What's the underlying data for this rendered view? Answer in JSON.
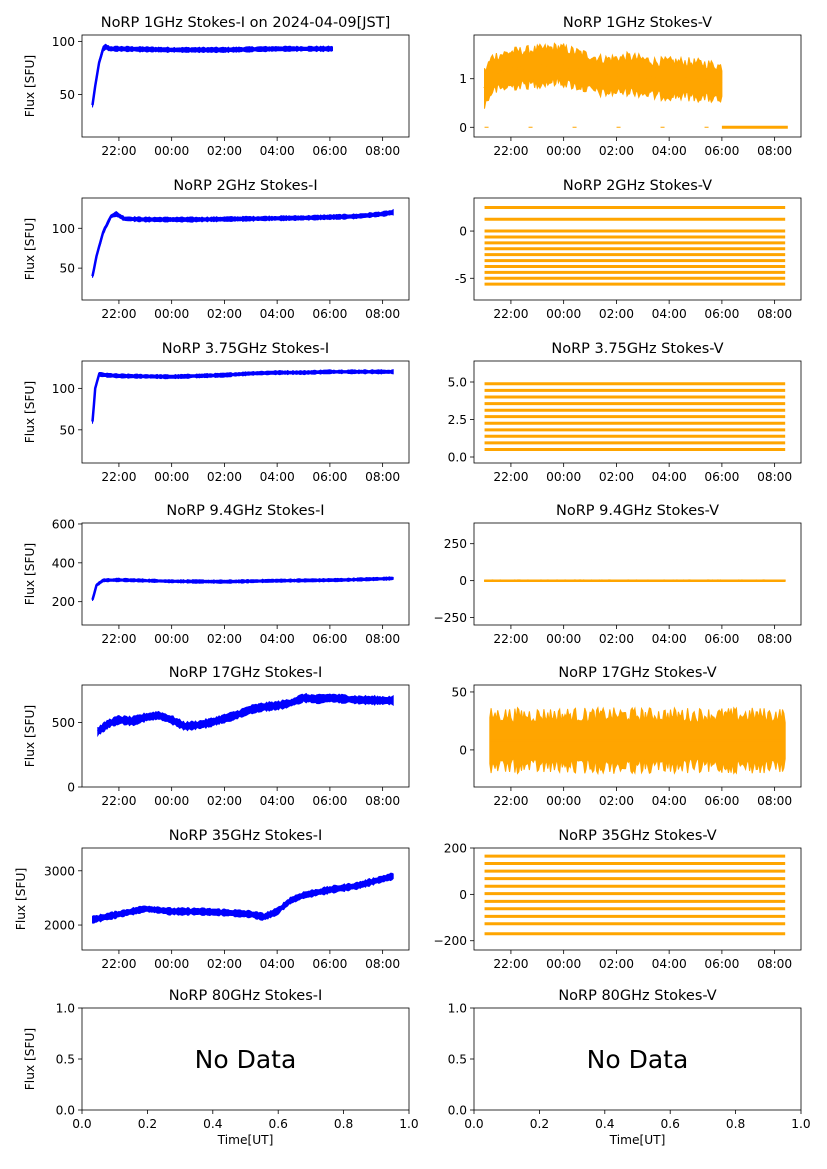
{
  "figure": {
    "date_label": "2024-04-09[JST]",
    "xlabel": "Time[UT]",
    "ylabel": "Flux [SFU]",
    "time_ticks": [
      "22:00",
      "00:00",
      "02:00",
      "04:00",
      "06:00",
      "08:00"
    ],
    "stokes_i_color": "#0000ff",
    "stokes_v_color": "#ffa500",
    "no_data_label": "No Data"
  },
  "chart_data": [
    {
      "type": "scatter",
      "title": "NoRP 1GHz Stokes-I on 2024-04-09[JST]",
      "ylabel": "Flux [SFU]",
      "xlabel": "",
      "x_unit": "hours since 21:00 UT",
      "xlim": [
        -0.4,
        12.0
      ],
      "ylim": [
        10,
        106
      ],
      "yticks": [
        50,
        100
      ],
      "color": "#0000ff",
      "series": [
        {
          "name": "Stokes-I",
          "x": [
            0,
            0.08,
            0.25,
            0.4,
            0.5,
            0.65,
            1,
            3,
            5,
            7,
            9
          ],
          "y": [
            40,
            55,
            80,
            93,
            95,
            93,
            93,
            92,
            92,
            93,
            93
          ],
          "spread": 2
        }
      ],
      "data_end": 9.1
    },
    {
      "type": "scatter",
      "title": "NoRP 1GHz Stokes-V",
      "ylabel": "",
      "xlabel": "",
      "x_unit": "hours since 21:00 UT",
      "xlim": [
        -0.4,
        12.0
      ],
      "ylim": [
        -0.2,
        1.9
      ],
      "yticks": [
        0,
        1
      ],
      "color": "#ffa500",
      "series": [
        {
          "name": "Stokes-V",
          "x": [
            0,
            0.3,
            1,
            2,
            2.8,
            3.8,
            4.5,
            5.5,
            6.5,
            7.5,
            8.5,
            9.0
          ],
          "y": [
            0.8,
            1.1,
            1.2,
            1.25,
            1.3,
            1.15,
            1.05,
            1.1,
            1.0,
            1.0,
            0.95,
            0.9
          ],
          "spread": 0.35
        }
      ],
      "extra_lines": [
        [
          0,
          9.0
        ],
        [
          11.5,
          0
        ]
      ]
    },
    {
      "type": "scatter",
      "title": "NoRP 2GHz Stokes-I",
      "ylabel": "Flux [SFU]",
      "xlabel": "",
      "x_unit": "hours since 21:00 UT",
      "xlim": [
        -0.4,
        12.0
      ],
      "ylim": [
        10,
        138
      ],
      "yticks": [
        50,
        100
      ],
      "color": "#0000ff",
      "series": [
        {
          "name": "Stokes-I",
          "x": [
            0,
            0.15,
            0.4,
            0.7,
            0.9,
            1.2,
            2,
            4,
            6,
            8,
            10,
            11,
            11.4
          ],
          "y": [
            40,
            65,
            95,
            115,
            118,
            112,
            111,
            111,
            112,
            113,
            115,
            118,
            120
          ],
          "spread": 2.5
        }
      ],
      "data_end": 11.4
    },
    {
      "type": "scatter",
      "title": "NoRP 2GHz Stokes-V",
      "ylabel": "",
      "xlabel": "",
      "x_unit": "hours since 21:00 UT",
      "xlim": [
        -0.4,
        12.0
      ],
      "ylim": [
        -7.3,
        3.5
      ],
      "yticks": [
        -5,
        0
      ],
      "color": "#ffa500",
      "levels": [
        2.5,
        1.25,
        0,
        -0.625,
        -1.25,
        -1.875,
        -2.5,
        -3.125,
        -3.75,
        -4.375,
        -5.0,
        -5.625
      ],
      "data_start": 0.0,
      "data_end": 11.4
    },
    {
      "type": "scatter",
      "title": "NoRP 3.75GHz Stokes-I",
      "ylabel": "Flux [SFU]",
      "xlabel": "",
      "x_unit": "hours since 21:00 UT",
      "xlim": [
        -0.4,
        12.0
      ],
      "ylim": [
        10,
        133
      ],
      "yticks": [
        50,
        100
      ],
      "color": "#0000ff",
      "series": [
        {
          "name": "Stokes-I",
          "x": [
            0,
            0.1,
            0.25,
            0.5,
            1,
            3,
            4,
            5,
            6,
            7,
            8,
            9,
            11,
            11.4
          ],
          "y": [
            60,
            100,
            117,
            116,
            115,
            114,
            115,
            116,
            118,
            119,
            119,
            120,
            120,
            120
          ],
          "spread": 2
        }
      ],
      "data_end": 11.4
    },
    {
      "type": "scatter",
      "title": "NoRP 3.75GHz Stokes-V",
      "ylabel": "",
      "xlabel": "",
      "x_unit": "hours since 21:00 UT",
      "xlim": [
        -0.4,
        12.0
      ],
      "ylim": [
        -0.4,
        6.4
      ],
      "yticks": [
        0.0,
        2.5,
        5.0
      ],
      "tick_labels": [
        "0.0",
        "2.5",
        "5.0"
      ],
      "color": "#ffa500",
      "levels": [
        0.5,
        0.94,
        1.38,
        1.81,
        2.25,
        2.69,
        3.12,
        3.56,
        4.0,
        4.44,
        4.88
      ],
      "data_start": 0.0,
      "data_end": 11.4
    },
    {
      "type": "scatter",
      "title": "NoRP 9.4GHz Stokes-I",
      "ylabel": "Flux [SFU]",
      "xlabel": "",
      "x_unit": "hours since 21:00 UT",
      "xlim": [
        -0.4,
        12.0
      ],
      "ylim": [
        80,
        605
      ],
      "yticks": [
        200,
        400,
        600
      ],
      "color": "#0000ff",
      "series": [
        {
          "name": "Stokes-I",
          "x": [
            0,
            0.15,
            0.4,
            1,
            3,
            5,
            7,
            8.5,
            9.5,
            11,
            11.4
          ],
          "y": [
            210,
            285,
            310,
            312,
            305,
            303,
            308,
            310,
            312,
            318,
            320
          ],
          "spread": 7
        }
      ],
      "data_end": 11.4
    },
    {
      "type": "scatter",
      "title": "NoRP 9.4GHz Stokes-V",
      "ylabel": "",
      "xlabel": "",
      "x_unit": "hours since 21:00 UT",
      "xlim": [
        -0.4,
        12.0
      ],
      "ylim": [
        -300,
        390
      ],
      "yticks": [
        -250,
        0,
        250
      ],
      "tick_labels": [
        "−250",
        "0",
        "250"
      ],
      "color": "#ffa500",
      "series": [
        {
          "name": "Stokes-V",
          "x": [
            0,
            11.4
          ],
          "y": [
            0,
            0
          ],
          "spread": 4
        }
      ],
      "data_start": 0.0,
      "data_end": 11.4
    },
    {
      "type": "scatter",
      "title": "NoRP 17GHz Stokes-I",
      "ylabel": "Flux [SFU]",
      "xlabel": "",
      "x_unit": "hours since 21:00 UT",
      "xlim": [
        -0.4,
        12.0
      ],
      "ylim": [
        0,
        790
      ],
      "yticks": [
        0,
        500
      ],
      "color": "#0000ff",
      "series": [
        {
          "name": "Stokes-I",
          "x": [
            0.2,
            0.6,
            1,
            1.5,
            2,
            2.5,
            3,
            3.5,
            4,
            4.5,
            5,
            5.5,
            6,
            6.5,
            7,
            7.5,
            8,
            8.5,
            9,
            10,
            11,
            11.4
          ],
          "y": [
            430,
            490,
            520,
            510,
            540,
            555,
            520,
            470,
            480,
            500,
            530,
            560,
            600,
            620,
            630,
            650,
            690,
            680,
            690,
            675,
            670,
            670
          ],
          "spread": 28
        }
      ],
      "data_start": 0.2,
      "data_end": 11.4
    },
    {
      "type": "scatter",
      "title": "NoRP 17GHz Stokes-V",
      "ylabel": "",
      "xlabel": "",
      "x_unit": "hours since 21:00 UT",
      "xlim": [
        -0.4,
        12.0
      ],
      "ylim": [
        -32,
        56
      ],
      "yticks": [
        0,
        50
      ],
      "color": "#ffa500",
      "series": [
        {
          "name": "Stokes-V",
          "x": [
            0.2,
            11.4
          ],
          "y": [
            8,
            8
          ],
          "spread": 22
        }
      ],
      "data_start": 0.2,
      "data_end": 11.4
    },
    {
      "type": "scatter",
      "title": "NoRP 35GHz Stokes-I",
      "ylabel": "Flux [SFU]",
      "xlabel": "",
      "x_unit": "hours since 21:00 UT",
      "xlim": [
        -0.4,
        12.0
      ],
      "ylim": [
        1540,
        3420
      ],
      "yticks": [
        2000,
        3000
      ],
      "color": "#0000ff",
      "series": [
        {
          "name": "Stokes-I",
          "x": [
            0,
            1,
            2,
            3,
            4,
            5,
            6,
            6.5,
            7,
            7.5,
            8,
            9,
            10,
            11,
            11.4
          ],
          "y": [
            2100,
            2200,
            2300,
            2250,
            2250,
            2230,
            2200,
            2150,
            2250,
            2450,
            2550,
            2650,
            2720,
            2850,
            2900
          ],
          "spread": 55
        }
      ],
      "data_end": 11.4
    },
    {
      "type": "scatter",
      "title": "NoRP 35GHz Stokes-V",
      "ylabel": "",
      "xlabel": "",
      "x_unit": "hours since 21:00 UT",
      "xlim": [
        -0.4,
        12.0
      ],
      "ylim": [
        -240,
        200
      ],
      "yticks": [
        -200,
        0,
        200
      ],
      "tick_labels": [
        "−200",
        "0",
        "200"
      ],
      "color": "#ffa500",
      "levels": [
        165,
        133,
        100,
        68,
        35,
        3,
        -30,
        -62,
        -95,
        -127,
        -170
      ],
      "data_start": 0.0,
      "data_end": 11.4
    },
    {
      "type": "empty",
      "title": "NoRP 80GHz Stokes-I",
      "ylabel": "Flux [SFU]",
      "xlabel": "Time[UT]",
      "xlim": [
        0.0,
        1.0
      ],
      "ylim": [
        0.0,
        1.0
      ],
      "annotation": "No Data",
      "xticks": [
        "0.0",
        "0.2",
        "0.4",
        "0.6",
        "0.8",
        "1.0"
      ],
      "yticks": [
        "0.0",
        "0.5",
        "1.0"
      ]
    },
    {
      "type": "empty",
      "title": "NoRP 80GHz Stokes-V",
      "ylabel": "",
      "xlabel": "Time[UT]",
      "xlim": [
        0.0,
        1.0
      ],
      "ylim": [
        0.0,
        1.0
      ],
      "annotation": "No Data",
      "xticks": [
        "0.0",
        "0.2",
        "0.4",
        "0.6",
        "0.8",
        "1.0"
      ],
      "yticks": [
        "0.0",
        "0.5",
        "1.0"
      ]
    }
  ]
}
